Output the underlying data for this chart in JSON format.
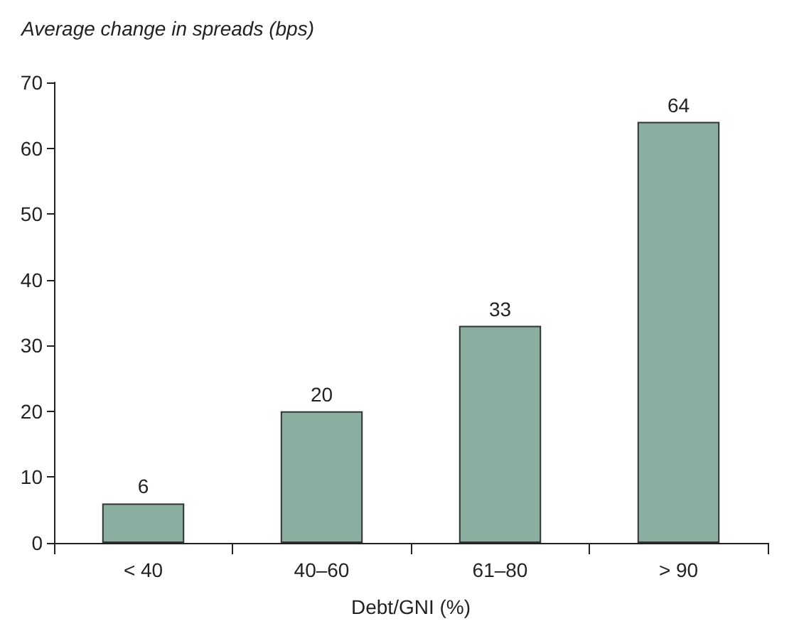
{
  "chart_data": {
    "type": "bar",
    "ylabel": "Average change in spreads (bps)",
    "xlabel": "Debt/GNI (%)",
    "categories": [
      "< 40",
      "40–60",
      "61–80",
      "> 90"
    ],
    "values": [
      6,
      20,
      33,
      64
    ],
    "color": "#8aafa0",
    "ylim": [
      0,
      70
    ],
    "yticks": [
      0,
      10,
      20,
      30,
      40,
      50,
      60,
      70
    ],
    "grid": false,
    "data_labels": true
  }
}
